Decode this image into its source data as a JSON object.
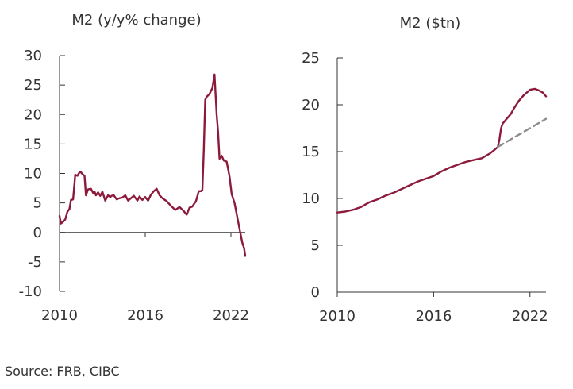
{
  "source": "Source: FRB, CIBC",
  "colors": {
    "series": "#8B1A3B",
    "projection": "#8C8C8C",
    "axis": "#333333"
  },
  "chart_data": [
    {
      "type": "line",
      "title": "M2 (y/y% change)",
      "xlabel": "",
      "ylabel": "",
      "xlim": [
        2010,
        2023
      ],
      "ylim": [
        -10,
        30
      ],
      "yticks": [
        30,
        25,
        20,
        15,
        10,
        5,
        0,
        -5,
        -10
      ],
      "xticks": [
        2010,
        2016,
        2022
      ],
      "grid": false,
      "legend": "none",
      "series": [
        {
          "x": [
            2010.0,
            2010.1,
            2010.25,
            2010.4,
            2010.55,
            2010.7,
            2010.8,
            2010.95,
            2011.1,
            2011.25,
            2011.4,
            2011.5,
            2011.6,
            2011.75,
            2011.85,
            2012.0,
            2012.2,
            2012.35,
            2012.45,
            2012.55,
            2012.7,
            2012.85,
            2013.0,
            2013.2,
            2013.4,
            2013.55,
            2013.65,
            2013.8,
            2014.0,
            2014.2,
            2014.4,
            2014.6,
            2014.8,
            2015.0,
            2015.2,
            2015.45,
            2015.6,
            2015.8,
            2016.0,
            2016.2,
            2016.4,
            2016.6,
            2016.8,
            2017.0,
            2017.2,
            2017.5,
            2017.8,
            2018.1,
            2018.4,
            2018.7,
            2018.9,
            2019.1,
            2019.3,
            2019.55,
            2019.75,
            2019.9,
            2020.0,
            2020.1,
            2020.2,
            2020.3,
            2020.5,
            2020.7,
            2020.85,
            2021.0,
            2021.1,
            2021.2,
            2021.35,
            2021.5,
            2021.7,
            2021.9,
            2022.05,
            2022.25,
            2022.45,
            2022.65,
            2022.8,
            2022.92,
            2023.0
          ],
          "values": [
            2.8,
            1.5,
            1.8,
            2.2,
            3.5,
            4.0,
            5.5,
            5.6,
            9.8,
            9.6,
            10.2,
            10.2,
            9.9,
            9.6,
            6.3,
            7.3,
            7.4,
            6.7,
            6.9,
            6.3,
            6.8,
            6.2,
            6.9,
            5.4,
            6.3,
            6.0,
            6.2,
            6.3,
            5.6,
            5.8,
            5.9,
            6.3,
            5.4,
            5.8,
            6.2,
            5.4,
            6.1,
            5.5,
            6.0,
            5.4,
            6.4,
            7.0,
            7.4,
            6.3,
            5.8,
            5.3,
            4.5,
            3.8,
            4.3,
            3.6,
            3.0,
            4.2,
            4.4,
            5.3,
            7.0,
            7.0,
            7.2,
            14.0,
            22.5,
            23.0,
            23.5,
            24.5,
            26.8,
            20.0,
            17.0,
            12.5,
            13.0,
            12.2,
            12.0,
            9.5,
            6.5,
            5.0,
            2.5,
            0.0,
            -1.8,
            -2.7,
            -4.0
          ]
        }
      ]
    },
    {
      "type": "line",
      "title": "M2 ($tn)",
      "xlabel": "",
      "ylabel": "",
      "xlim": [
        2010,
        2023
      ],
      "ylim": [
        0,
        25
      ],
      "yticks": [
        25,
        20,
        15,
        10,
        5,
        0
      ],
      "xticks": [
        2010,
        2016,
        2022
      ],
      "grid": false,
      "legend": "none",
      "series": [
        {
          "x": [
            2010.0,
            2010.5,
            2011.0,
            2011.5,
            2012.0,
            2012.5,
            2013.0,
            2013.5,
            2014.0,
            2014.5,
            2015.0,
            2015.5,
            2016.0,
            2016.5,
            2017.0,
            2017.5,
            2018.0,
            2018.5,
            2019.0,
            2019.5,
            2019.8,
            2020.0,
            2020.1,
            2020.2,
            2020.3,
            2020.5,
            2020.8,
            2021.0,
            2021.3,
            2021.6,
            2022.0,
            2022.3,
            2022.6,
            2022.8,
            2023.0
          ],
          "values": [
            8.5,
            8.6,
            8.8,
            9.1,
            9.6,
            9.9,
            10.3,
            10.6,
            11.0,
            11.4,
            11.8,
            12.1,
            12.4,
            12.9,
            13.3,
            13.6,
            13.9,
            14.1,
            14.3,
            14.8,
            15.2,
            15.5,
            16.3,
            17.5,
            18.0,
            18.4,
            19.0,
            19.6,
            20.4,
            21.0,
            21.6,
            21.7,
            21.5,
            21.3,
            20.9
          ]
        },
        {
          "style": "dashed",
          "x": [
            2020.0,
            2023.0
          ],
          "values": [
            15.5,
            18.5
          ]
        }
      ]
    }
  ]
}
